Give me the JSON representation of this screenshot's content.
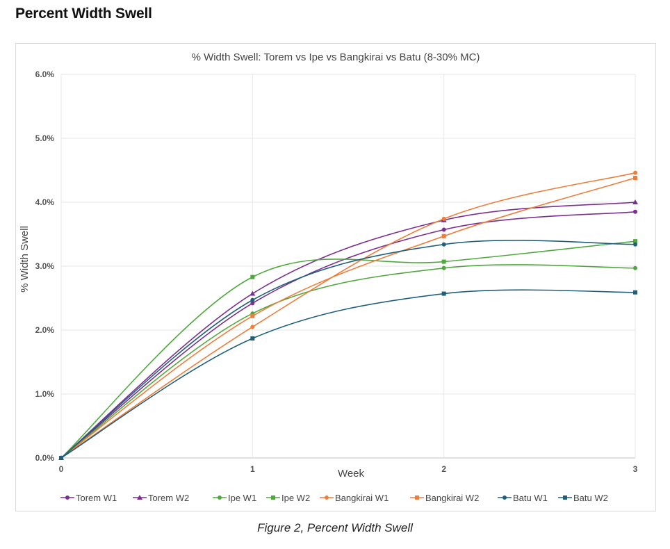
{
  "page": {
    "heading": "Percent Width Swell",
    "caption": "Figure 2, Percent Width Swell"
  },
  "chart_data": {
    "type": "line",
    "title": "% Width Swell: Torem vs Ipe vs Bangkirai vs Batu (8-30% MC)",
    "xlabel": "Week",
    "ylabel": "% Width Swell",
    "x": [
      0,
      1,
      2,
      3
    ],
    "x_ticks": [
      "0",
      "1",
      "2",
      "3"
    ],
    "xlim": [
      0,
      3
    ],
    "ylim": [
      0,
      6
    ],
    "y_ticks": [
      "0.0%",
      "1.0%",
      "2.0%",
      "3.0%",
      "4.0%",
      "5.0%",
      "6.0%"
    ],
    "grid": true,
    "smooth": true,
    "legend_position": "bottom",
    "series": [
      {
        "name": "Torem W1",
        "values": [
          0,
          2.42,
          3.57,
          3.85
        ],
        "color": "#7b2f8f",
        "marker": "circle"
      },
      {
        "name": "Torem W2",
        "values": [
          0,
          2.57,
          3.72,
          4.0
        ],
        "color": "#7b2f8f",
        "marker": "triangle"
      },
      {
        "name": "Ipe W1",
        "values": [
          0,
          2.26,
          2.97,
          2.97
        ],
        "color": "#4fa83d",
        "marker": "circle"
      },
      {
        "name": "Ipe W2",
        "values": [
          0,
          2.83,
          3.07,
          3.39
        ],
        "color": "#4fa83d",
        "marker": "square"
      },
      {
        "name": "Bangkirai W1",
        "values": [
          0,
          2.05,
          3.74,
          4.46
        ],
        "color": "#ec7d3a",
        "marker": "circle"
      },
      {
        "name": "Bangkirai W2",
        "values": [
          0,
          2.22,
          3.47,
          4.38
        ],
        "color": "#ec7d3a",
        "marker": "square"
      },
      {
        "name": "Batu W1",
        "values": [
          0,
          2.47,
          3.34,
          3.34
        ],
        "color": "#1f5f7a",
        "marker": "circle"
      },
      {
        "name": "Batu W2",
        "values": [
          0,
          1.87,
          2.57,
          2.59
        ],
        "color": "#1f5f7a",
        "marker": "square"
      }
    ]
  }
}
